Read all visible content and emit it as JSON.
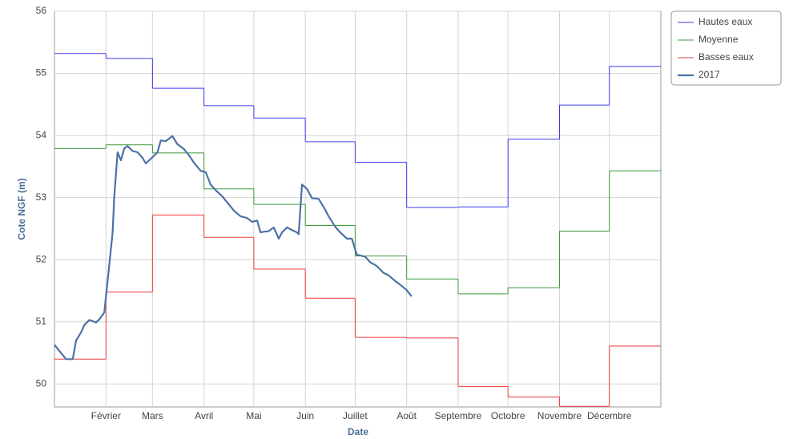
{
  "chart_data": {
    "type": "line",
    "x_label": "Date",
    "y_label": "Cote NGF (m)",
    "xlim": [
      0,
      365
    ],
    "ylim": [
      49.63,
      56
    ],
    "xticks": [
      {
        "value": 31,
        "label": "Février"
      },
      {
        "value": 59,
        "label": "Mars"
      },
      {
        "value": 90,
        "label": "Avril"
      },
      {
        "value": 120,
        "label": "Mai"
      },
      {
        "value": 151,
        "label": "Juin"
      },
      {
        "value": 181,
        "label": "Juillet"
      },
      {
        "value": 212,
        "label": "Août"
      },
      {
        "value": 243,
        "label": "Septembre"
      },
      {
        "value": 273,
        "label": "Octobre"
      },
      {
        "value": 304,
        "label": "Novembre"
      },
      {
        "value": 334,
        "label": "Décembre"
      }
    ],
    "yticks": [
      50,
      51,
      52,
      53,
      54,
      55,
      56
    ],
    "grid": true,
    "legend": "outside-right",
    "series": [
      {
        "name": "Hautes eaux",
        "color": "#3a3af0",
        "drawstyle": "steps-post",
        "width": 1,
        "x": [
          0,
          31,
          59,
          90,
          120,
          151,
          181,
          212,
          243,
          273,
          304,
          334
        ],
        "values": [
          55.32,
          55.24,
          54.76,
          54.48,
          54.28,
          53.9,
          53.57,
          52.84,
          52.85,
          53.94,
          54.49,
          55.11
        ]
      },
      {
        "name": "Moyenne",
        "color": "#3a9a3a",
        "drawstyle": "steps-post",
        "width": 1,
        "x": [
          0,
          31,
          59,
          90,
          120,
          151,
          181,
          212,
          243,
          273,
          304,
          334
        ],
        "values": [
          53.79,
          53.85,
          53.72,
          53.14,
          52.89,
          52.55,
          52.06,
          51.69,
          51.45,
          51.55,
          52.46,
          53.43
        ]
      },
      {
        "name": "Basses eaux",
        "color": "#ee3a3a",
        "drawstyle": "steps-post",
        "width": 1,
        "x": [
          0,
          31,
          59,
          90,
          120,
          151,
          181,
          212,
          243,
          273,
          304,
          334
        ],
        "values": [
          50.4,
          51.48,
          52.72,
          52.36,
          51.85,
          51.38,
          50.75,
          50.74,
          49.96,
          49.79,
          49.64,
          50.61
        ]
      },
      {
        "name": "2017",
        "color": "#4a72a8",
        "drawstyle": "default",
        "width": 2.2,
        "x": [
          0,
          3,
          7,
          11,
          13,
          16,
          18,
          21,
          25,
          27,
          30,
          33,
          35,
          36,
          38,
          40,
          42,
          44,
          47,
          50,
          53,
          55,
          59,
          62,
          64,
          67,
          71,
          74,
          78,
          81,
          84,
          88,
          91,
          94,
          97,
          101,
          105,
          108,
          112,
          116,
          119,
          122,
          124,
          126,
          129,
          132,
          135,
          137,
          140,
          142,
          146,
          147,
          149,
          152,
          155,
          159,
          162,
          165,
          169,
          172,
          176,
          179,
          182,
          187,
          190,
          194,
          198,
          201,
          205,
          208,
          212,
          215
        ],
        "values": [
          50.63,
          50.53,
          50.4,
          50.4,
          50.7,
          50.83,
          50.95,
          51.03,
          50.99,
          51.04,
          51.15,
          51.92,
          52.44,
          53.02,
          53.73,
          53.6,
          53.79,
          53.83,
          53.75,
          53.73,
          53.64,
          53.55,
          53.65,
          53.73,
          53.92,
          53.91,
          53.99,
          53.86,
          53.78,
          53.68,
          53.56,
          53.43,
          53.41,
          53.21,
          53.12,
          53.02,
          52.89,
          52.79,
          52.7,
          52.67,
          52.61,
          52.63,
          52.44,
          52.45,
          52.46,
          52.52,
          52.34,
          52.44,
          52.52,
          52.49,
          52.44,
          52.41,
          53.21,
          53.14,
          52.99,
          52.98,
          52.85,
          52.7,
          52.53,
          52.44,
          52.34,
          52.34,
          52.08,
          52.05,
          51.96,
          51.9,
          51.79,
          51.75,
          51.66,
          51.6,
          51.51,
          51.41
        ]
      }
    ]
  }
}
